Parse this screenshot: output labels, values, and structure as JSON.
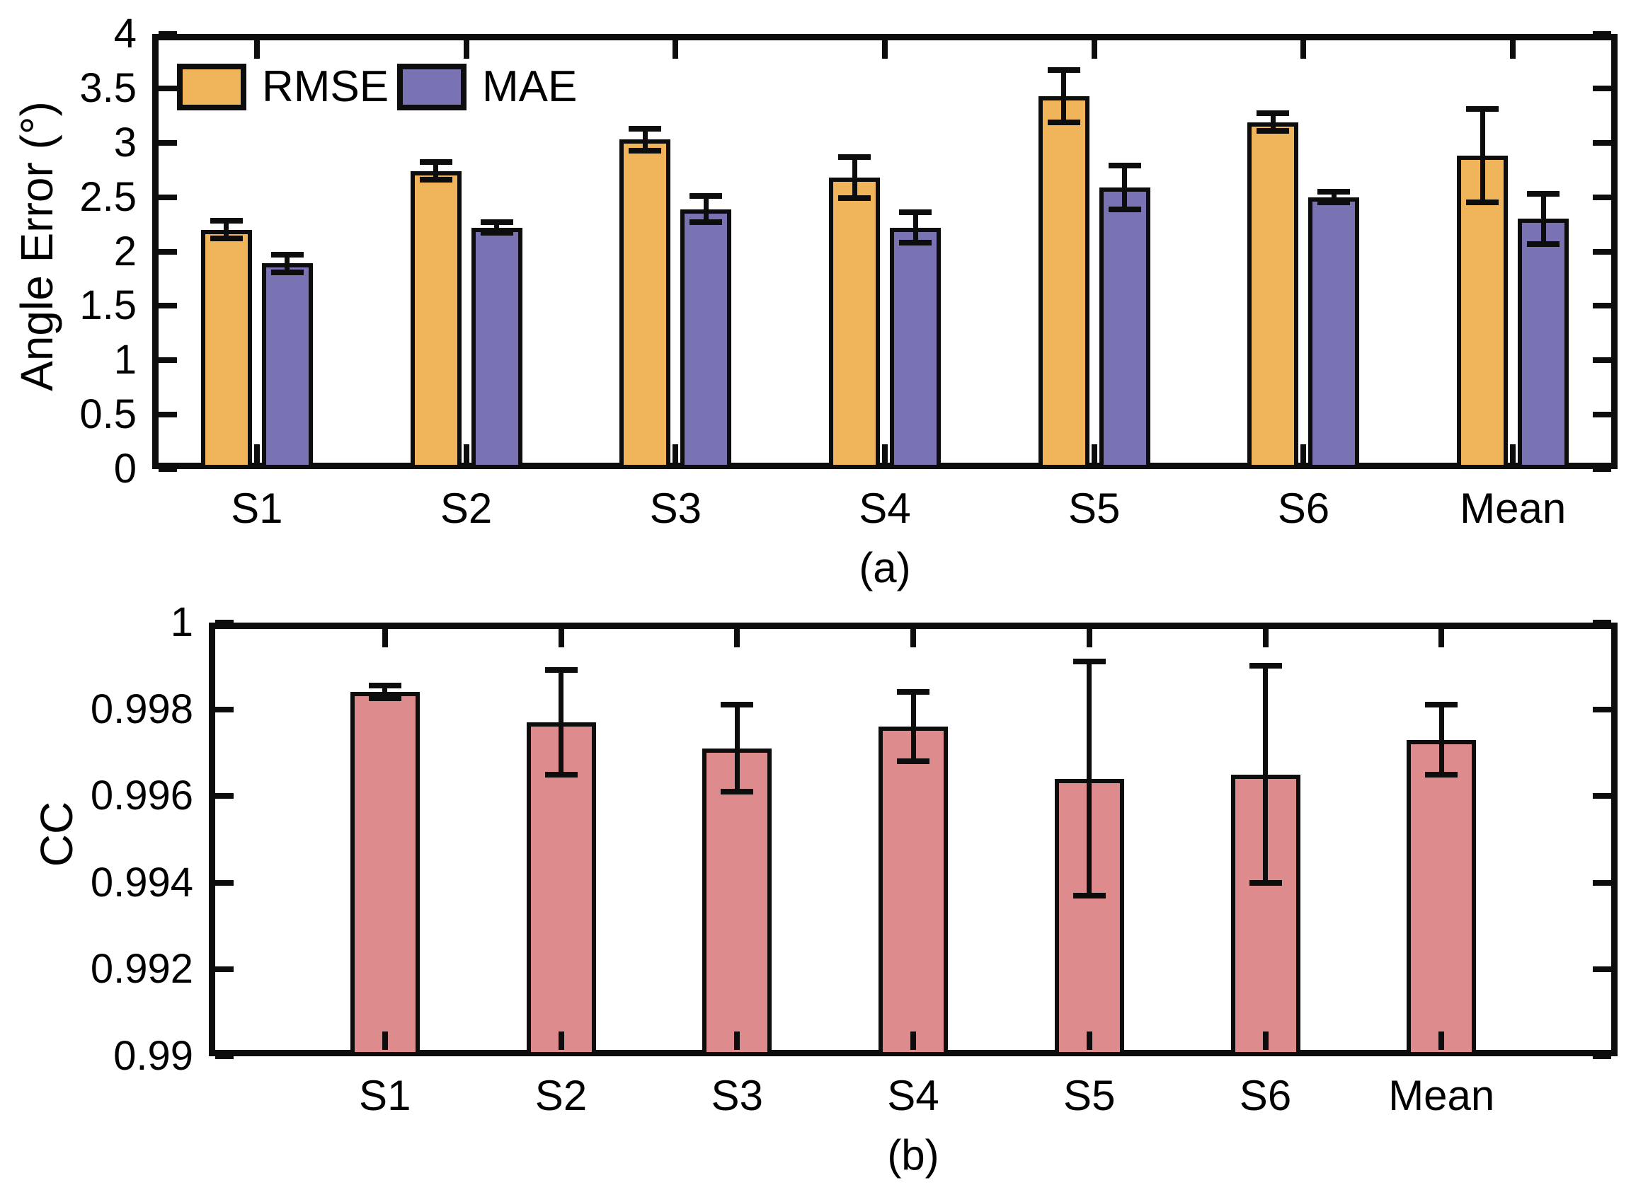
{
  "figure": {
    "background": "#ffffff",
    "axis_color": "#0d0d0d",
    "panel_a_tag": "(a)",
    "panel_b_tag": "(b)"
  },
  "chart_data": [
    {
      "type": "bar",
      "panel": "(a)",
      "title": "",
      "xlabel": "",
      "ylabel": "Angle Error (°)",
      "categories": [
        "S1",
        "S2",
        "S3",
        "S4",
        "S5",
        "S6",
        "Mean"
      ],
      "ylim": [
        0,
        4
      ],
      "ytick_values": [
        0,
        0.5,
        1,
        1.5,
        2,
        2.5,
        3,
        3.5,
        4
      ],
      "ytick_labels": [
        "0",
        "0.5",
        "1",
        "1.5",
        "2",
        "2.5",
        "3",
        "3.5",
        "4"
      ],
      "grid": false,
      "legend_position": "top-left-inside",
      "error_bars": true,
      "series": [
        {
          "name": "RMSE",
          "color": "#F0B45A",
          "edge_color": "#0d0d0d",
          "values": [
            2.2,
            2.74,
            3.03,
            2.68,
            3.43,
            3.19,
            2.88
          ],
          "errors": [
            0.08,
            0.08,
            0.1,
            0.19,
            0.24,
            0.08,
            0.43
          ]
        },
        {
          "name": "MAE",
          "color": "#7A73B3",
          "edge_color": "#0d0d0d",
          "values": [
            1.89,
            2.22,
            2.39,
            2.22,
            2.59,
            2.5,
            2.3
          ],
          "errors": [
            0.08,
            0.05,
            0.12,
            0.14,
            0.2,
            0.05,
            0.23
          ]
        }
      ]
    },
    {
      "type": "bar",
      "panel": "(b)",
      "title": "",
      "xlabel": "",
      "ylabel": "CC",
      "categories": [
        "S1",
        "S2",
        "S3",
        "S4",
        "S5",
        "S6",
        "Mean"
      ],
      "ylim": [
        0.99,
        1
      ],
      "ytick_values": [
        0.99,
        0.992,
        0.994,
        0.996,
        0.998,
        1
      ],
      "ytick_labels": [
        "0.99",
        "0.992",
        "0.994",
        "0.996",
        "0.998",
        "1"
      ],
      "grid": false,
      "legend_position": "none",
      "error_bars": true,
      "series": [
        {
          "name": "CC",
          "color": "#DD8B8C",
          "edge_color": "#0d0d0d",
          "values": [
            0.9984,
            0.9977,
            0.9971,
            0.9976,
            0.9964,
            0.9965,
            0.9973
          ],
          "errors": [
            0.00015,
            0.0012,
            0.001,
            0.0008,
            0.0027,
            0.0025,
            0.0008
          ]
        }
      ]
    }
  ]
}
